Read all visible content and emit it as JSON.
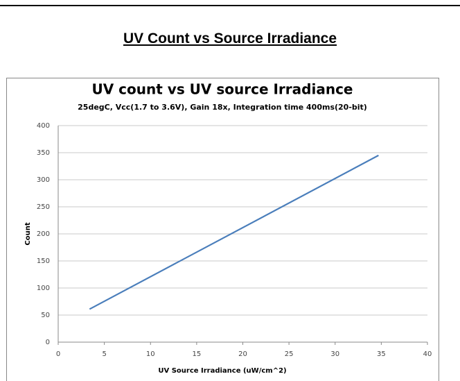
{
  "heading": "UV Count vs Source Irradiance",
  "chart_data": {
    "type": "line",
    "title": "UV count vs UV source Irradiance",
    "subtitle": "25degC, Vcc(1.7 to 3.6V), Gain 18x,  Integration time 400ms(20-bit)",
    "xlabel": "UV Source Irradiance (uW/cm^2)",
    "ylabel": "Count",
    "x": [
      3.4,
      34.7
    ],
    "series": [
      {
        "name": "UV count",
        "color": "#4a7ebb",
        "values": [
          61,
          345
        ]
      }
    ],
    "xlim": [
      0,
      40
    ],
    "xticks": [
      0,
      5,
      10,
      15,
      20,
      25,
      30,
      35,
      40
    ],
    "ylim": [
      0,
      400
    ],
    "yticks": [
      0,
      50,
      100,
      150,
      200,
      250,
      300,
      350,
      400
    ],
    "grid": true
  }
}
